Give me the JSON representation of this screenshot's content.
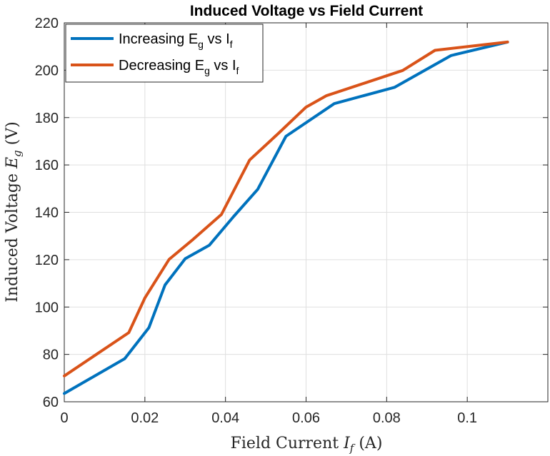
{
  "chart_data": {
    "type": "line",
    "title": "Induced Voltage vs Field Current",
    "xlabel": "Field Current I_f (A)",
    "ylabel": "Induced Voltage E_g (V)",
    "xlim": [
      0,
      0.12
    ],
    "ylim": [
      60,
      220
    ],
    "xticks": [
      0,
      0.02,
      0.04,
      0.06,
      0.08,
      0.1
    ],
    "xtick_labels": [
      "0",
      "0.02",
      "0.04",
      "0.06",
      "0.08",
      "0.1"
    ],
    "yticks": [
      60,
      80,
      100,
      120,
      140,
      160,
      180,
      200,
      220
    ],
    "ytick_labels": [
      "60",
      "80",
      "100",
      "120",
      "140",
      "160",
      "180",
      "200",
      "220"
    ],
    "grid": true,
    "legend_position": "top-left",
    "series": [
      {
        "name": "Increasing E_g vs I_f",
        "color": "#0072BD",
        "x": [
          0,
          0.015,
          0.021,
          0.025,
          0.03,
          0.036,
          0.042,
          0.048,
          0.055,
          0.067,
          0.082,
          0.096,
          0.11
        ],
        "y": [
          63.5,
          78.2,
          91.3,
          109.3,
          120.4,
          126.1,
          138.2,
          149.7,
          172.1,
          185.9,
          192.8,
          206.2,
          211.9
        ]
      },
      {
        "name": "Decreasing E_g vs I_f",
        "color": "#D95319",
        "x": [
          0,
          0.016,
          0.02,
          0.026,
          0.032,
          0.039,
          0.046,
          0.053,
          0.06,
          0.065,
          0.084,
          0.092,
          0.11
        ],
        "y": [
          70.9,
          89.2,
          103.8,
          120.1,
          128.6,
          139.1,
          162.1,
          173.1,
          184.4,
          189.2,
          199.9,
          208.4,
          211.9
        ]
      }
    ]
  }
}
